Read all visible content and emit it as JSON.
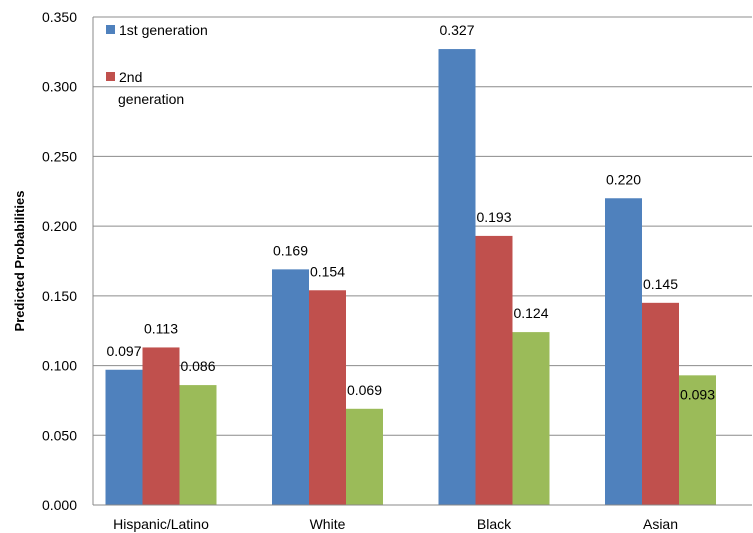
{
  "chart_data": {
    "type": "bar",
    "title": "",
    "xlabel": "",
    "ylabel": "Predicted Probabilities",
    "categories": [
      "Hispanic/Latino",
      "White",
      "Black",
      "Asian"
    ],
    "ylim": [
      0,
      0.35
    ],
    "yticks": [
      "0.000",
      "0.050",
      "0.100",
      "0.150",
      "0.200",
      "0.250",
      "0.300",
      "0.350"
    ],
    "grid": true,
    "legend_position": "top-left",
    "series": [
      {
        "name": "1st generation",
        "color": "#4f81bd",
        "values": [
          0.097,
          0.169,
          0.327,
          0.22
        ],
        "labels": [
          "0.097",
          "0.169",
          "0.327",
          "0.220"
        ]
      },
      {
        "name": "2nd generation",
        "legend_lines": [
          "2nd",
          "generation"
        ],
        "color": "#c0504d",
        "values": [
          0.113,
          0.154,
          0.193,
          0.145
        ],
        "labels": [
          "0.113",
          "0.154",
          "0.193",
          "0.145"
        ]
      },
      {
        "name": "",
        "color": "#9bbb59",
        "values": [
          0.086,
          0.069,
          0.124,
          0.093
        ],
        "labels": [
          "0.086",
          "0.069",
          "0.124",
          "0.093"
        ]
      }
    ]
  }
}
